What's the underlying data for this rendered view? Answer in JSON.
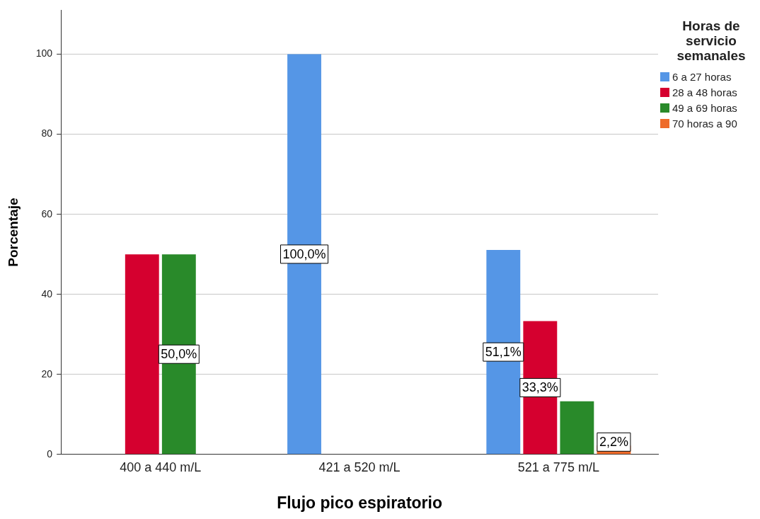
{
  "chart_data": {
    "type": "bar",
    "xlabel": "Flujo pico espiratorio",
    "ylabel": "Porcentaje",
    "legend_title": "Horas de servicio semanales",
    "categories": [
      "400 a 440 m/L",
      "421 a 520 m/L",
      "521 a 775 m/L"
    ],
    "series": [
      {
        "name": "6 a 27 horas",
        "color": "#5596e6",
        "values": [
          null,
          100,
          51.1
        ],
        "value_labels": [
          null,
          "100,0%",
          "51,1%"
        ]
      },
      {
        "name": "28 a 48 horas",
        "color": "#d5002f",
        "values": [
          50,
          null,
          33.3
        ],
        "value_labels": [
          null,
          null,
          "33,3%"
        ]
      },
      {
        "name": "49 a 69 horas",
        "color": "#298a2a",
        "values": [
          50,
          null,
          13.3
        ],
        "value_labels": [
          "50,0%",
          null,
          null
        ]
      },
      {
        "name": "70 horas a 90",
        "color": "#ee6b2a",
        "values": [
          null,
          null,
          2.2
        ],
        "value_labels": [
          null,
          null,
          "2,2%"
        ]
      }
    ],
    "ylim": [
      0,
      111
    ],
    "yticks": [
      0,
      20,
      40,
      60,
      80,
      100
    ],
    "grid": "y",
    "legend": "top right"
  }
}
